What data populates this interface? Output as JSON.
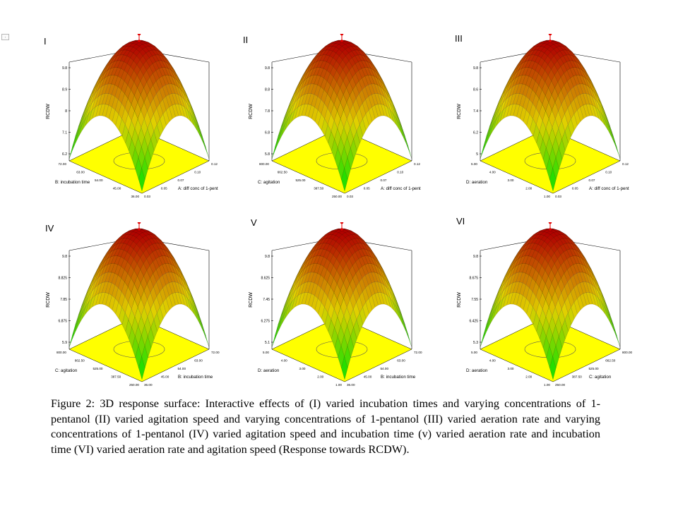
{
  "page_marker": "i",
  "caption": "Figure 2: 3D response surface: Interactive effects of (I) varied incubation times and varying concentrations of 1-pentanol (II) varied agitation speed and varying concentrations of 1-pentanol (III) varied aeration rate and varying concentrations of 1-pentanol (IV) varied agitation speed and incubation time (v) varied aeration rate and incubation time (VI) varied aeration rate and agitation speed (Response towards RCDW).",
  "colors": {
    "floor": "#ffff00",
    "surface_low": "#00e000",
    "surface_mid": "#e0d000",
    "surface_high": "#b00000",
    "marker": "#e00000"
  },
  "chart_data": [
    {
      "panel": "I",
      "type": "surface",
      "ylabel": "RCDW",
      "z_ticks": [
        "6.2",
        "7.1",
        "8",
        "8.9",
        "9.8"
      ],
      "left_axis_label": "B: incubation time",
      "left_ticks": [
        "36.00",
        "45.00",
        "54.00",
        "63.00",
        "72.00"
      ],
      "right_axis_label": "A: diff conc of 1-pent",
      "right_ticks": [
        "0.03",
        "0.05",
        "0.07",
        "0.10",
        "0.12"
      ],
      "z_range": [
        6.2,
        9.8
      ],
      "peak": 9.8
    },
    {
      "panel": "II",
      "type": "surface",
      "ylabel": "RCDW",
      "z_ticks": [
        "5.8",
        "6.8",
        "7.8",
        "8.8",
        "9.8"
      ],
      "left_axis_label": "C: agitation",
      "left_ticks": [
        "250.00",
        "387.50",
        "525.00",
        "662.50",
        "800.00"
      ],
      "right_axis_label": "A: diff conc of 1-pent",
      "right_ticks": [
        "0.03",
        "0.05",
        "0.07",
        "0.10",
        "0.12"
      ],
      "z_range": [
        5.8,
        9.8
      ],
      "peak": 9.8
    },
    {
      "panel": "III",
      "type": "surface",
      "ylabel": "RCDW",
      "z_ticks": [
        "5",
        "6.2",
        "7.4",
        "8.6",
        "9.8"
      ],
      "left_axis_label": "D: aeration",
      "left_ticks": [
        "1.00",
        "2.00",
        "3.00",
        "4.00",
        "5.00"
      ],
      "right_axis_label": "A: diff conc of 1-pent",
      "right_ticks": [
        "0.03",
        "0.05",
        "0.07",
        "0.10",
        "0.12"
      ],
      "z_range": [
        5,
        9.8
      ],
      "peak": 9.8
    },
    {
      "panel": "IV",
      "type": "surface",
      "ylabel": "RCDW",
      "z_ticks": [
        "5.9",
        "6.875",
        "7.85",
        "8.825",
        "9.8"
      ],
      "left_axis_label": "C: agitation",
      "left_ticks": [
        "250.00",
        "387.50",
        "525.00",
        "662.50",
        "800.00"
      ],
      "right_axis_label": "B: incubation time",
      "right_ticks": [
        "36.00",
        "45.00",
        "54.00",
        "63.00",
        "72.00"
      ],
      "z_range": [
        5.9,
        9.8
      ],
      "peak": 9.8
    },
    {
      "panel": "V",
      "type": "surface",
      "ylabel": "RCDW",
      "z_ticks": [
        "5.1",
        "6.275",
        "7.45",
        "8.625",
        "9.8"
      ],
      "left_axis_label": "D: aeration",
      "left_ticks": [
        "1.00",
        "2.00",
        "3.00",
        "4.00",
        "5.00"
      ],
      "right_axis_label": "B: incubation time",
      "right_ticks": [
        "36.00",
        "45.00",
        "54.00",
        "63.00",
        "72.00"
      ],
      "z_range": [
        5.1,
        9.8
      ],
      "peak": 9.8
    },
    {
      "panel": "VI",
      "type": "surface",
      "ylabel": "RCDW",
      "z_ticks": [
        "5.3",
        "6.425",
        "7.55",
        "8.675",
        "9.8"
      ],
      "left_axis_label": "D: aeration",
      "left_ticks": [
        "1.00",
        "2.00",
        "3.00",
        "4.00",
        "5.00"
      ],
      "right_axis_label": "C: agitation",
      "right_ticks": [
        "250.00",
        "387.50",
        "525.00",
        "662.50",
        "800.00"
      ],
      "z_range": [
        5.3,
        9.8
      ],
      "peak": 9.8
    }
  ]
}
